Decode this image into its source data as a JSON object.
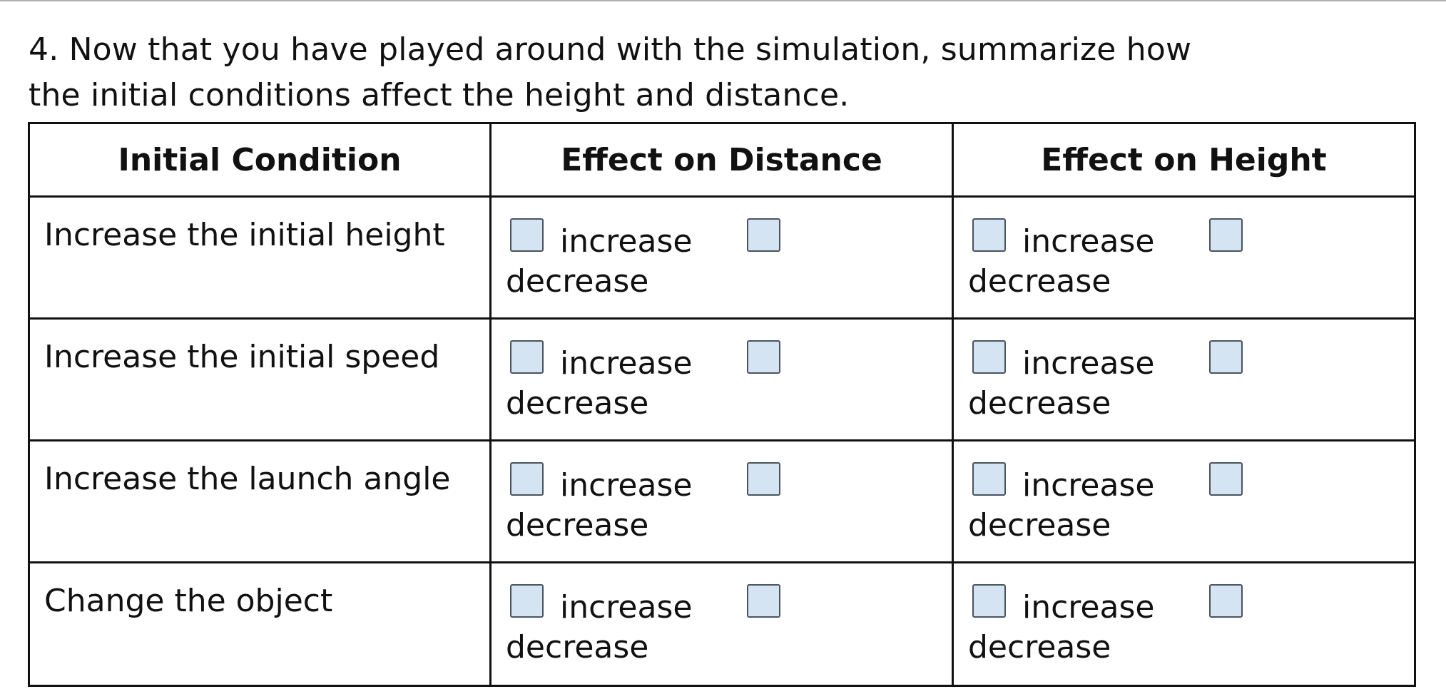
{
  "question": {
    "line1": "4.  Now that you have played around with the simulation, summarize how",
    "line2": "the initial conditions affect the height and distance."
  },
  "table": {
    "headers": [
      "Initial Condition",
      "Effect on Distance",
      "Effect on Height"
    ],
    "rows": [
      {
        "condition": "Increase the initial height",
        "distance": {
          "option1": "increase",
          "option2": "decrease",
          "checked1": false,
          "checked2": false
        },
        "height": {
          "option1": "increase",
          "option2": "decrease",
          "checked1": false,
          "checked2": false
        }
      },
      {
        "condition": "Increase the initial speed",
        "distance": {
          "option1": "increase",
          "option2": "decrease",
          "checked1": false,
          "checked2": false
        },
        "height": {
          "option1": "increase",
          "option2": "decrease",
          "checked1": false,
          "checked2": false
        }
      },
      {
        "condition": "Increase the launch angle",
        "distance": {
          "option1": "increase",
          "option2": "decrease",
          "checked1": false,
          "checked2": false
        },
        "height": {
          "option1": "increase",
          "option2": "decrease",
          "checked1": false,
          "checked2": false
        }
      },
      {
        "condition": "Change the object",
        "distance": {
          "option1": "increase",
          "option2": "decrease",
          "checked1": false,
          "checked2": false
        },
        "height": {
          "option1": "increase",
          "option2": "decrease",
          "checked1": false,
          "checked2": false
        }
      }
    ]
  },
  "colors": {
    "checkbox_fill": "#d5e4f3",
    "checkbox_border": "#4b5360",
    "grid_line": "#111111"
  }
}
